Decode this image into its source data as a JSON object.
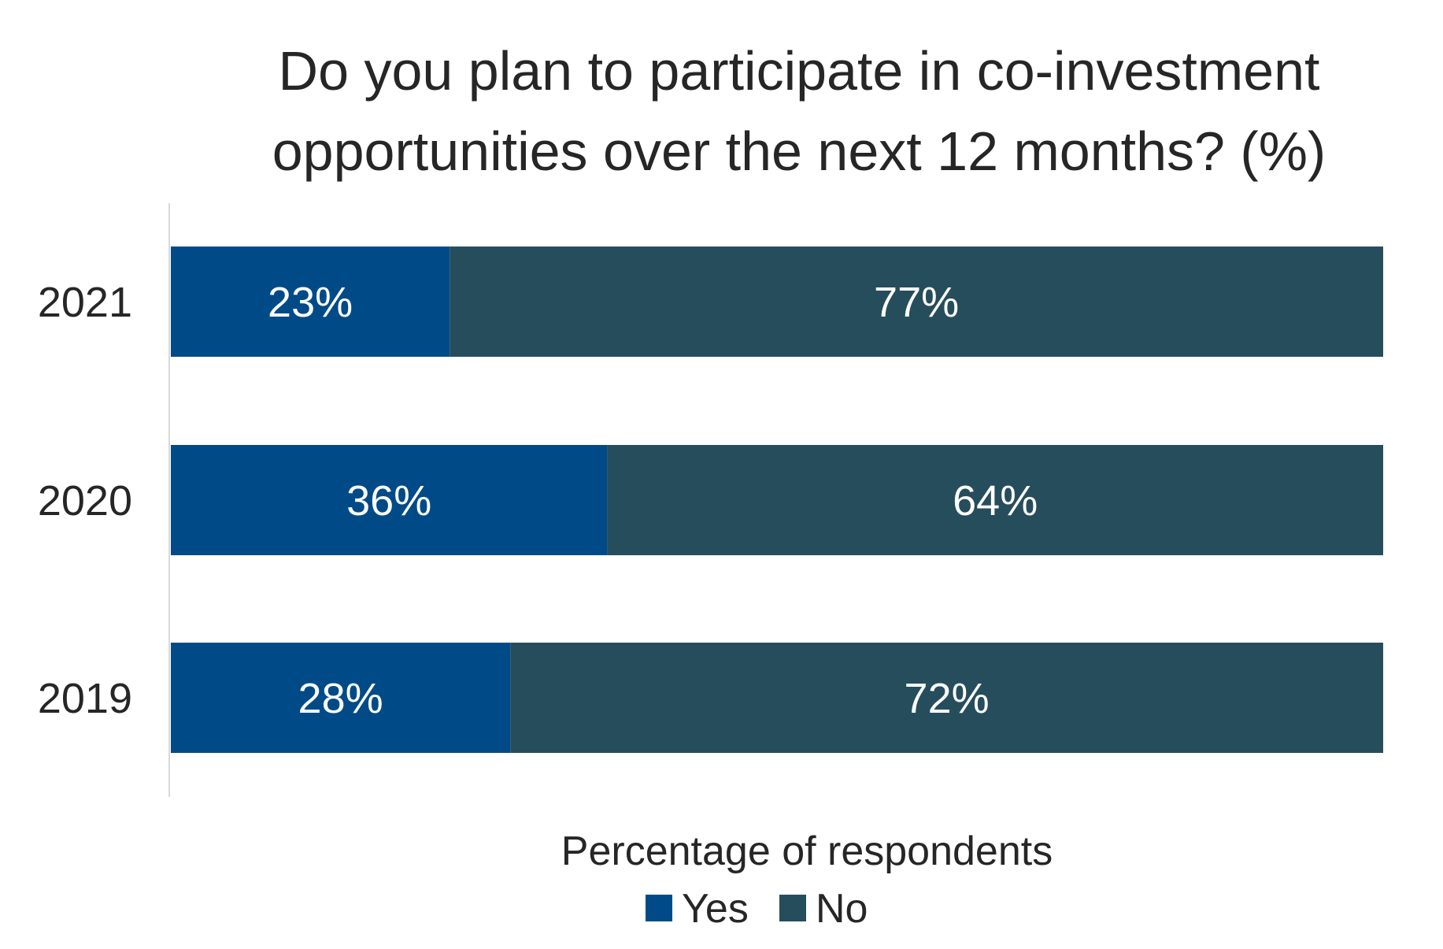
{
  "chart_data": {
    "type": "bar",
    "orientation": "horizontal",
    "stacked": true,
    "title_lines": [
      "Do you plan to participate in co-investment",
      "opportunities over the next 12 months? (%)"
    ],
    "title": "Do you plan to participate in co-investment opportunities over the next 12 months? (%)",
    "xlabel": "Percentage of respondents",
    "ylabel": "",
    "categories": [
      "2021",
      "2020",
      "2019"
    ],
    "series": [
      {
        "name": "Yes",
        "color": "#004b87",
        "values": [
          23,
          36,
          28
        ],
        "labels": [
          "23%",
          "36%",
          "28%"
        ]
      },
      {
        "name": "No",
        "color": "#264d5c",
        "values": [
          77,
          64,
          72
        ],
        "labels": [
          "77%",
          "64%",
          "72%"
        ]
      }
    ],
    "xlim": [
      0,
      100
    ],
    "grid": false,
    "legend_position": "bottom"
  }
}
